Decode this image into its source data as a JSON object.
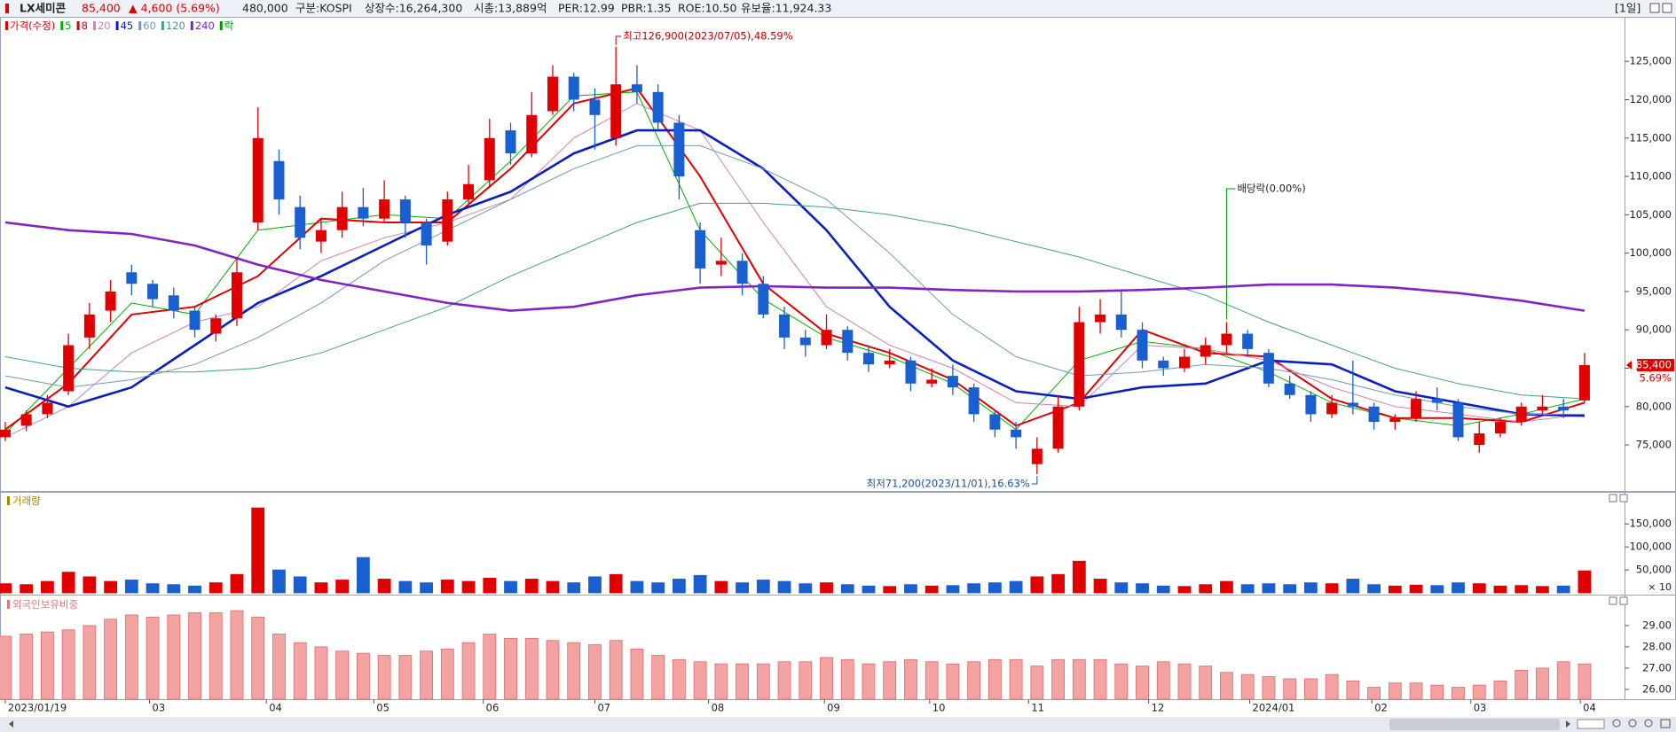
{
  "header": {
    "name": "LX세미콘",
    "price": "85,400",
    "change": "▲ 4,600 (5.69%)",
    "volume": "480,000",
    "market": "구분:KOSPI",
    "shares": "상장수:16,264,300",
    "market_cap": "시총:13,889억",
    "per": "PER:12.99",
    "pbr": "PBR:1.35",
    "roe": "ROE:10.50",
    "reserve_ratio": "유보율:11,924.33",
    "period": "[1일]"
  },
  "chart_data": [
    {
      "type": "candlestick",
      "price_name": "가격(수정)",
      "up_color": "#e00000",
      "down_color": "#1a5fd0",
      "open": [
        76000,
        77500,
        79000,
        82000,
        89000,
        92500,
        97500,
        96000,
        94500,
        92500,
        89500,
        91500,
        104000,
        112000,
        106000,
        101500,
        103000,
        106000,
        104500,
        107000,
        104000,
        101500,
        107000,
        109500,
        116000,
        113000,
        118500,
        123000,
        120000,
        115000,
        122000,
        121000,
        117000,
        103000,
        98500,
        99000,
        96000,
        92000,
        89000,
        88000,
        90000,
        87000,
        85500,
        86000,
        83000,
        84000,
        82500,
        79000,
        77000,
        72500,
        74500,
        80000,
        91000,
        92000,
        90000,
        86000,
        85000,
        86500,
        88000,
        89500,
        87000,
        83000,
        81500,
        79000,
        80500,
        80000,
        78000,
        78500,
        81000,
        80500,
        75000,
        76500,
        78000,
        79500,
        80000,
        80800
      ],
      "high": [
        78000,
        79500,
        81500,
        89500,
        93500,
        96500,
        98500,
        96500,
        95500,
        93000,
        92000,
        99500,
        119000,
        113500,
        107500,
        104500,
        108000,
        108500,
        109500,
        107500,
        104500,
        108000,
        111500,
        117500,
        117000,
        121000,
        124500,
        123500,
        121500,
        126900,
        124500,
        122000,
        118000,
        104000,
        102000,
        100000,
        97000,
        93000,
        90000,
        92000,
        90500,
        88000,
        87500,
        86500,
        85000,
        85500,
        83000,
        79500,
        78000,
        76000,
        81500,
        93000,
        94000,
        95000,
        91000,
        86500,
        87500,
        89000,
        91000,
        90000,
        87500,
        84000,
        82000,
        81500,
        86000,
        80500,
        79000,
        82000,
        82500,
        81000,
        78000,
        78500,
        80500,
        81500,
        81000,
        87000
      ],
      "low": [
        75500,
        76800,
        78500,
        81500,
        87500,
        91000,
        94500,
        93000,
        91500,
        89000,
        88500,
        90500,
        103000,
        105000,
        100500,
        100000,
        102000,
        103500,
        104000,
        102000,
        98500,
        101000,
        106500,
        108500,
        111500,
        112500,
        118000,
        118500,
        113500,
        114000,
        119500,
        116000,
        107000,
        96000,
        97000,
        94500,
        91500,
        87500,
        86500,
        87500,
        86000,
        84500,
        85000,
        82000,
        82500,
        81500,
        78000,
        76000,
        74500,
        71200,
        74000,
        79500,
        89500,
        89000,
        85000,
        84000,
        84500,
        85500,
        87000,
        86500,
        82500,
        81000,
        78000,
        78500,
        79000,
        77000,
        77000,
        78000,
        79500,
        75500,
        74000,
        76000,
        77500,
        79000,
        78500,
        80500
      ],
      "close": [
        77000,
        79000,
        80500,
        88000,
        92000,
        95000,
        96000,
        94000,
        92500,
        90000,
        91500,
        97500,
        115000,
        107000,
        102000,
        103000,
        106000,
        104500,
        107000,
        104000,
        101000,
        107000,
        109000,
        115000,
        113000,
        118000,
        123000,
        120000,
        118000,
        122000,
        121000,
        117000,
        110000,
        98000,
        99000,
        96000,
        92000,
        89000,
        88000,
        90000,
        87000,
        85500,
        86000,
        83000,
        83500,
        82500,
        79000,
        77000,
        76000,
        74500,
        80000,
        91000,
        92000,
        90000,
        86000,
        85000,
        86500,
        88000,
        89500,
        87500,
        83000,
        81500,
        79000,
        80500,
        80000,
        78000,
        78500,
        81000,
        80500,
        76000,
        76500,
        78000,
        80000,
        80000,
        79500,
        85400
      ],
      "ma_index": [
        0,
        3,
        6,
        9,
        12,
        15,
        18,
        21,
        24,
        27,
        30,
        33,
        36,
        39,
        42,
        45,
        48,
        51,
        54,
        57,
        60,
        63,
        66,
        69,
        72,
        75
      ],
      "series": [
        {
          "name": "5",
          "color": "#00b000",
          "values": [
            76500,
            85000,
            93500,
            92000,
            103000,
            104000,
            105000,
            104500,
            112000,
            120500,
            121000,
            103000,
            94000,
            89000,
            86500,
            83000,
            77000,
            86000,
            88500,
            87500,
            84500,
            80500,
            78500,
            77500,
            79000,
            81000
          ]
        },
        {
          "name": "8",
          "color": "#e00000",
          "values": [
            77000,
            83000,
            92000,
            93000,
            97000,
            104500,
            104000,
            104000,
            111000,
            119500,
            121500,
            110000,
            96000,
            89500,
            87000,
            83500,
            77500,
            80500,
            90000,
            87000,
            86500,
            81000,
            78500,
            78500,
            78000,
            80500
          ]
        },
        {
          "name": "20",
          "color": "#d77fb0",
          "values": [
            76000,
            80000,
            87000,
            91000,
            93000,
            99000,
            102000,
            104000,
            107000,
            115000,
            119500,
            116000,
            104000,
            93000,
            88000,
            85000,
            80500,
            80000,
            88000,
            87500,
            86000,
            82500,
            80000,
            79000,
            78000,
            79000
          ]
        },
        {
          "name": "45",
          "color": "#0a1fc0",
          "values": [
            82500,
            80000,
            82500,
            88000,
            93500,
            97000,
            101000,
            105000,
            108000,
            113000,
            116000,
            116000,
            111000,
            103000,
            93000,
            86000,
            82000,
            81000,
            82500,
            83000,
            86000,
            85500,
            82000,
            80500,
            79000,
            78800
          ]
        },
        {
          "name": "60",
          "color": "#6f9bb8",
          "values": [
            84000,
            82500,
            83500,
            85500,
            89000,
            93500,
            99000,
            103000,
            107000,
            111000,
            114000,
            114000,
            111000,
            107000,
            100000,
            92000,
            86500,
            84000,
            84500,
            85500,
            85000,
            83500,
            81500,
            80000,
            79000,
            79000
          ]
        },
        {
          "name": "120",
          "color": "#3fa383",
          "values": [
            86500,
            85000,
            84500,
            84500,
            85000,
            87000,
            90000,
            93000,
            97000,
            100500,
            104000,
            106500,
            106500,
            106000,
            105000,
            103500,
            101500,
            99500,
            97000,
            94500,
            91000,
            88000,
            85000,
            83000,
            81500,
            81000
          ]
        },
        {
          "name": "240",
          "color": "#8224c4",
          "values": [
            104000,
            103000,
            102500,
            101000,
            98500,
            96500,
            95000,
            93500,
            92500,
            93000,
            94500,
            95500,
            95700,
            95500,
            95500,
            95200,
            95000,
            95000,
            95200,
            95500,
            95900,
            95900,
            95500,
            94800,
            93800,
            92500
          ]
        }
      ],
      "ex_dividend": {
        "name": "락",
        "color": "#009a00",
        "label": "배당락(0.00%)"
      },
      "high_label": "최고126,900(2023/07/05),48.59%",
      "low_label": "최저71,200(2023/11/01),16.63%",
      "last_price_label": "85,400",
      "last_change_label": "5.69%",
      "ylim": [
        69000,
        130800
      ],
      "yticks": [
        {
          "value": 75000,
          "label": "75,000"
        },
        {
          "value": 80000,
          "label": "80,000"
        },
        {
          "value": 85000,
          "label": "85,000"
        },
        {
          "value": 90000,
          "label": "90,000"
        },
        {
          "value": 95000,
          "label": "95,000"
        },
        {
          "value": 100000,
          "label": "100,000"
        },
        {
          "value": 105000,
          "label": "105,000"
        },
        {
          "value": 110000,
          "label": "110,000"
        },
        {
          "value": 115000,
          "label": "115,000"
        },
        {
          "value": 120000,
          "label": "120,000"
        },
        {
          "value": 125000,
          "label": "125,000"
        }
      ]
    },
    {
      "type": "bar",
      "title": "거래량",
      "color": "#a08a00",
      "unit_label": "× 10",
      "values": [
        20000,
        18000,
        25000,
        45000,
        35000,
        25000,
        28000,
        20000,
        18000,
        15000,
        22000,
        40000,
        185000,
        50000,
        35000,
        22000,
        28000,
        77000,
        30000,
        25000,
        22000,
        28000,
        25000,
        32000,
        25000,
        30000,
        25000,
        22000,
        35000,
        40000,
        25000,
        22000,
        30000,
        38000,
        25000,
        22000,
        28000,
        25000,
        20000,
        22000,
        18000,
        15000,
        14000,
        18000,
        15000,
        16000,
        20000,
        22000,
        25000,
        35000,
        40000,
        69000,
        30000,
        22000,
        20000,
        15000,
        14000,
        18000,
        25000,
        18000,
        20000,
        18000,
        22000,
        20000,
        30000,
        18000,
        15000,
        17000,
        16000,
        22000,
        20000,
        15000,
        16000,
        14000,
        15000,
        48000
      ],
      "ylim": [
        0,
        218000
      ],
      "yticks": [
        {
          "value": 50000,
          "label": "50,000"
        },
        {
          "value": 100000,
          "label": "100,000"
        },
        {
          "value": 150000,
          "label": "150,000"
        }
      ]
    },
    {
      "type": "bar",
      "title": "외국인보유비중",
      "color": "#f4a3a3",
      "title_color": "#e07a7a",
      "values": [
        28.5,
        28.6,
        28.7,
        28.8,
        29.0,
        29.3,
        29.5,
        29.4,
        29.5,
        29.6,
        29.6,
        29.7,
        29.4,
        28.6,
        28.2,
        28.0,
        27.8,
        27.7,
        27.6,
        27.6,
        27.8,
        27.9,
        28.2,
        28.6,
        28.4,
        28.4,
        28.3,
        28.2,
        28.1,
        28.3,
        27.9,
        27.6,
        27.4,
        27.3,
        27.2,
        27.2,
        27.2,
        27.3,
        27.3,
        27.5,
        27.4,
        27.2,
        27.3,
        27.4,
        27.3,
        27.2,
        27.3,
        27.4,
        27.4,
        27.1,
        27.4,
        27.4,
        27.4,
        27.2,
        27.1,
        27.3,
        27.2,
        27.1,
        26.8,
        26.7,
        26.6,
        26.5,
        26.5,
        26.7,
        26.4,
        26.1,
        26.3,
        26.3,
        26.2,
        26.1,
        26.2,
        26.4,
        26.9,
        27.0,
        27.3,
        27.2
      ],
      "ylim": [
        25.54,
        30.37
      ],
      "yticks": [
        {
          "value": 26,
          "label": "26.00"
        },
        {
          "value": 27,
          "label": "27.00"
        },
        {
          "value": 28,
          "label": "28.00"
        },
        {
          "value": 29,
          "label": "29.00"
        }
      ],
      "xlim": [
        -0.25,
        76.9
      ],
      "xticks": [
        {
          "value": 0,
          "label": "2023/01/19"
        },
        {
          "value": 6.85,
          "label": "03"
        },
        {
          "value": 12.4,
          "label": "04"
        },
        {
          "value": 17.5,
          "label": "05"
        },
        {
          "value": 22.7,
          "label": "06"
        },
        {
          "value": 28.0,
          "label": "07"
        },
        {
          "value": 33.4,
          "label": "08"
        },
        {
          "value": 38.9,
          "label": "09"
        },
        {
          "value": 43.9,
          "label": "10"
        },
        {
          "value": 48.6,
          "label": "11"
        },
        {
          "value": 54.3,
          "label": "12"
        },
        {
          "value": 59.1,
          "label": "2024/01"
        },
        {
          "value": 64.9,
          "label": "02"
        },
        {
          "value": 69.6,
          "label": "03"
        },
        {
          "value": 74.8,
          "label": "04"
        }
      ]
    }
  ]
}
